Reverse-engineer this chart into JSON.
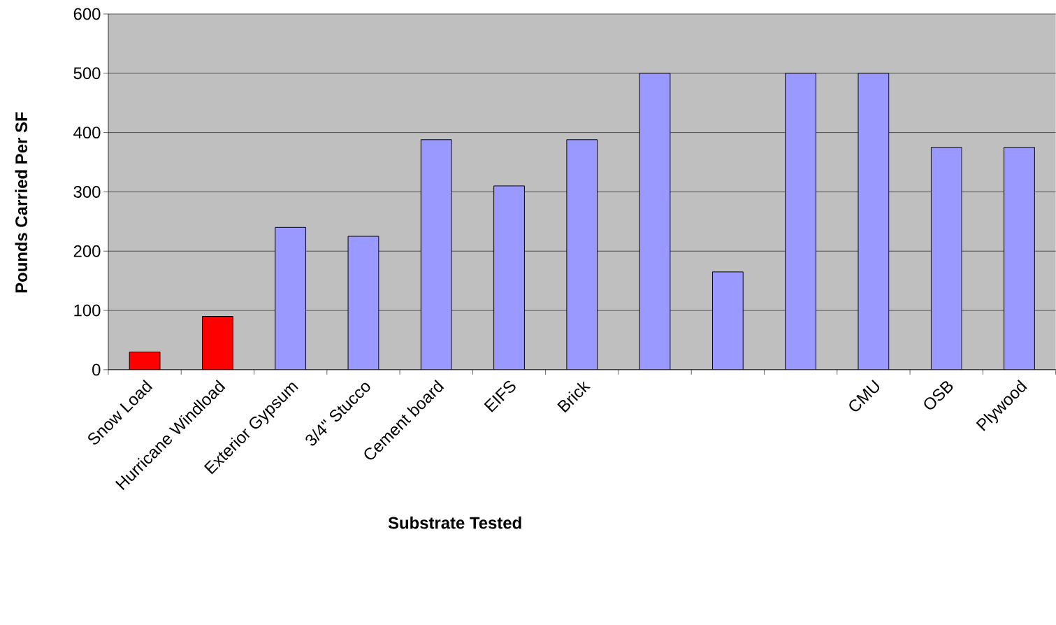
{
  "chart_data": {
    "type": "bar",
    "xlabel": "Substrate Tested",
    "ylabel": "Pounds Carried Per SF",
    "categories": [
      "Snow Load",
      "Hurricane Windload",
      "Exterior Gypsum",
      "3/4\" Stucco",
      "Cement board",
      "EIFS",
      "Brick",
      null,
      null,
      null,
      "CMU",
      "OSB",
      "Plywood"
    ],
    "values": [
      30,
      90,
      240,
      225,
      388,
      310,
      388,
      500,
      165,
      500,
      500,
      375,
      375
    ],
    "colors": [
      "#ff0000",
      "#ff0000",
      "#9999ff",
      "#9999ff",
      "#9999ff",
      "#9999ff",
      "#9999ff",
      "#9999ff",
      "#9999ff",
      "#9999ff",
      "#9999ff",
      "#9999ff",
      "#9999ff"
    ],
    "ylim": [
      0,
      600
    ],
    "yticks": [
      0,
      100,
      200,
      300,
      400,
      500,
      600
    ],
    "grid": "y"
  }
}
